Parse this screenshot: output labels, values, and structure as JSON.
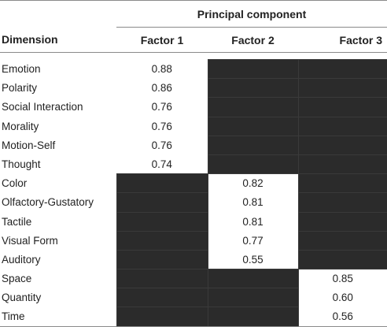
{
  "table": {
    "group_header": "Principal component",
    "columns": [
      "Dimension",
      "Factor 1",
      "Factor 2",
      "Factor 3"
    ],
    "rows": [
      {
        "dimension": "Emotion",
        "values": [
          "0.88",
          "",
          ""
        ],
        "shaded": [
          false,
          true,
          true
        ]
      },
      {
        "dimension": "Polarity",
        "values": [
          "0.86",
          "",
          ""
        ],
        "shaded": [
          false,
          true,
          true
        ]
      },
      {
        "dimension": "Social Interaction",
        "values": [
          "0.76",
          "",
          ""
        ],
        "shaded": [
          false,
          true,
          true
        ]
      },
      {
        "dimension": "Morality",
        "values": [
          "0.76",
          "",
          ""
        ],
        "shaded": [
          false,
          true,
          true
        ]
      },
      {
        "dimension": "Motion-Self",
        "values": [
          "0.76",
          "",
          ""
        ],
        "shaded": [
          false,
          true,
          true
        ]
      },
      {
        "dimension": "Thought",
        "values": [
          "0.74",
          "",
          ""
        ],
        "shaded": [
          false,
          true,
          true
        ]
      },
      {
        "dimension": "Color",
        "values": [
          "",
          "0.82",
          ""
        ],
        "shaded": [
          true,
          false,
          true
        ]
      },
      {
        "dimension": "Olfactory-Gustatory",
        "values": [
          "",
          "0.81",
          ""
        ],
        "shaded": [
          true,
          false,
          true
        ]
      },
      {
        "dimension": "Tactile",
        "values": [
          "",
          "0.81",
          ""
        ],
        "shaded": [
          true,
          false,
          true
        ]
      },
      {
        "dimension": "Visual Form",
        "values": [
          "",
          "0.77",
          ""
        ],
        "shaded": [
          true,
          false,
          true
        ]
      },
      {
        "dimension": "Auditory",
        "values": [
          "",
          "0.55",
          ""
        ],
        "shaded": [
          true,
          false,
          true
        ]
      },
      {
        "dimension": "Space",
        "values": [
          "",
          "",
          "0.85"
        ],
        "shaded": [
          true,
          true,
          false
        ]
      },
      {
        "dimension": "Quantity",
        "values": [
          "",
          "",
          "0.60"
        ],
        "shaded": [
          true,
          true,
          false
        ]
      },
      {
        "dimension": "Time",
        "values": [
          "",
          "",
          "0.56"
        ],
        "shaded": [
          true,
          true,
          false
        ]
      }
    ]
  },
  "colors": {
    "shade": "#2b2b2b",
    "text": "#222222",
    "rule": "#8a8a8a"
  }
}
